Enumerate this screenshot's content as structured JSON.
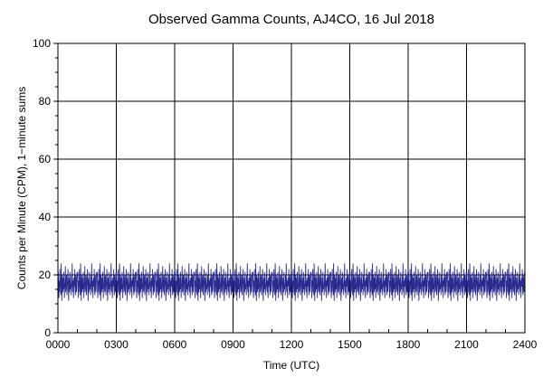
{
  "chart_data": {
    "type": "line",
    "title": "Observed Gamma Counts, AJ4CO, 16 Jul 2018",
    "xlabel": "Time (UTC)",
    "ylabel": "Counts per Minute (CPM), 1−minute sums",
    "xlim": [
      0,
      1440
    ],
    "ylim": [
      0,
      100
    ],
    "x_ticks": [
      {
        "value": 0,
        "label": "0000"
      },
      {
        "value": 180,
        "label": "0300"
      },
      {
        "value": 360,
        "label": "0600"
      },
      {
        "value": 540,
        "label": "0900"
      },
      {
        "value": 720,
        "label": "1200"
      },
      {
        "value": 900,
        "label": "1500"
      },
      {
        "value": 1080,
        "label": "1800"
      },
      {
        "value": 1260,
        "label": "2100"
      },
      {
        "value": 1440,
        "label": "2400"
      }
    ],
    "y_ticks": [
      {
        "value": 0,
        "label": "0"
      },
      {
        "value": 20,
        "label": "20"
      },
      {
        "value": 40,
        "label": "40"
      },
      {
        "value": 60,
        "label": "60"
      },
      {
        "value": 80,
        "label": "80"
      },
      {
        "value": 100,
        "label": "100"
      }
    ],
    "grid": true,
    "line_color": "#2b2b8f",
    "series": [
      {
        "x_start": 0,
        "x_step": 1,
        "count": 1440,
        "mean_cpm": 16.5,
        "values": [
          19,
          21,
          15,
          12,
          18,
          14,
          22,
          17,
          16,
          13,
          24,
          18,
          11,
          20,
          16,
          14,
          19,
          15,
          21,
          18,
          12,
          17,
          16,
          23,
          14,
          15,
          19,
          20,
          13,
          16,
          18,
          22,
          17,
          11,
          16,
          19,
          14,
          21,
          18,
          15,
          17,
          13,
          20,
          16,
          24,
          15,
          14,
          18,
          12,
          19,
          17,
          16,
          22,
          15,
          13,
          20,
          18,
          14,
          16,
          21
        ]
      }
    ]
  }
}
